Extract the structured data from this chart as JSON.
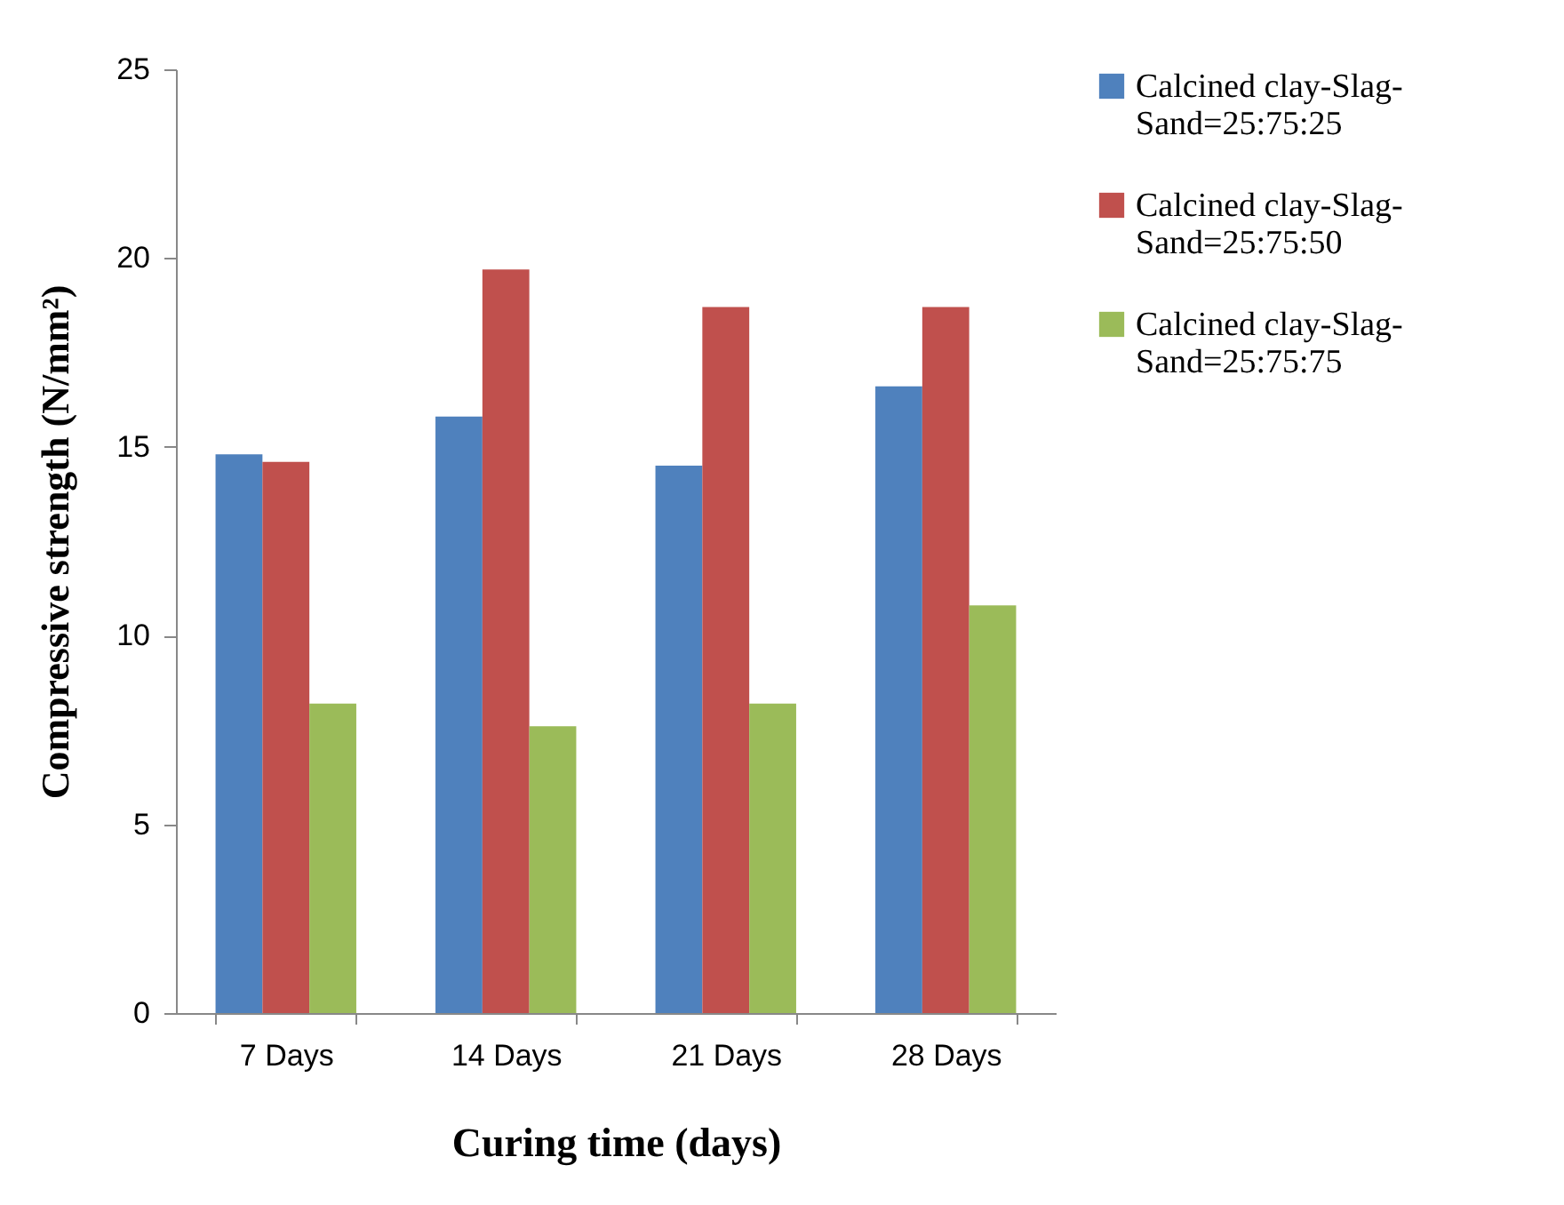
{
  "chart_data": {
    "type": "bar",
    "xlabel": "Curing  time (days)",
    "ylabel": "Compressive strength (N/mm²)",
    "categories": [
      "7 Days",
      "14 Days",
      "21 Days",
      "28 Days"
    ],
    "series": [
      {
        "name": "Calcined clay-Slag-Sand=25:75:25",
        "color": "#4f81bd",
        "values": [
          14.8,
          15.8,
          14.5,
          16.6
        ]
      },
      {
        "name": "Calcined clay-Slag-Sand=25:75:50",
        "color": "#c0504d",
        "values": [
          14.6,
          19.7,
          18.7,
          18.7
        ]
      },
      {
        "name": "Calcined clay-Slag-Sand=25:75:75",
        "color": "#9bbb59",
        "values": [
          8.2,
          7.6,
          8.2,
          10.8
        ]
      }
    ],
    "ylim": [
      0,
      25
    ],
    "yticks": [
      0,
      5,
      10,
      15,
      20,
      25
    ],
    "grid": false,
    "legend": "right"
  }
}
